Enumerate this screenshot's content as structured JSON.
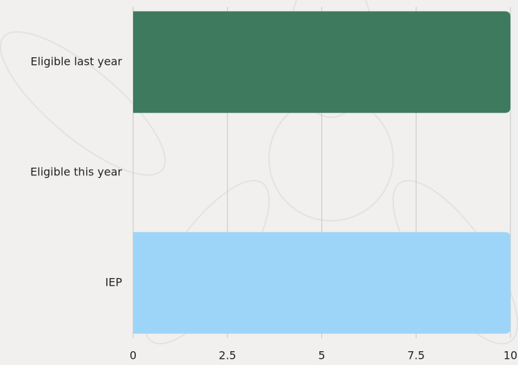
{
  "chart_data": {
    "type": "hbar",
    "categories": [
      "Eligible last year",
      "Eligible this year",
      "IEP"
    ],
    "values": [
      10,
      0,
      10
    ],
    "colors": [
      "#3d7a5e",
      "#3d7a5e",
      "#9dd5f8"
    ],
    "xlim": [
      0,
      10
    ],
    "xticks": [
      0,
      2.5,
      5,
      7.5,
      10
    ],
    "grid": true
  }
}
